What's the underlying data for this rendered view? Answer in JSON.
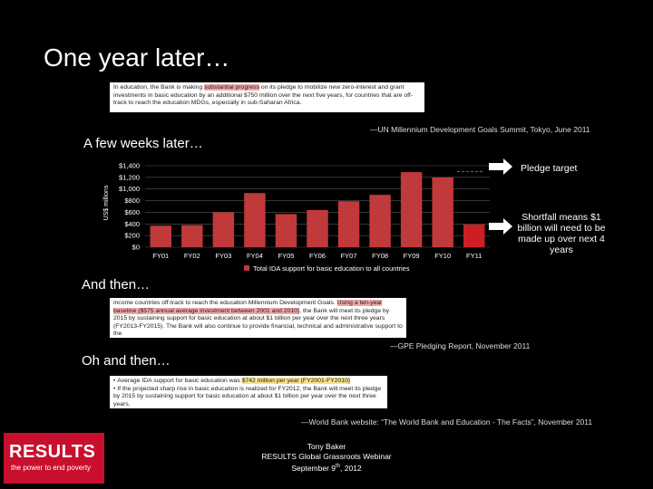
{
  "slide": {
    "title": "One year later…",
    "quote1": {
      "pre": "In education, the Bank is making ",
      "highlight": "substantial progress",
      "post": " on its pledge to mobilize new zero-interest and grant investments in basic education by an additional $750 million over the next five years, for countries that are off-track to reach the education MDGs, especially in sub-Saharan Africa.",
      "attribution": "—UN Millennium Development Goals Summit, Tokyo, June 2011"
    },
    "section2": "A few weeks later…",
    "section3": "And then…",
    "quote2": {
      "pre": "income countries off-track to reach the education Millennium Development Goals. ",
      "highlight": "Using a ten-year baseline ($575 annual average investment between 2001 and 2010)",
      "post": ", the Bank will meet its pledge by 2015 by sustaining support for basic education at about $1 billion per year over the next three years (FY2013-FY2015). The Bank will also continue to provide financial, technical and administrative support to the",
      "attribution": "—GPE Pledging Report, November 2011"
    },
    "section4": "Oh and then…",
    "quote3": {
      "line1_pre": "Average IDA support for basic education was ",
      "line1_highlight": "$742 million per year (FY2001-FY2010)",
      "line2": "If the projected sharp rise in basic education is realized for FY2012, the Bank will meet its pledge by 2015 by sustaining support for basic education at about $1 billion per year over the next three years.",
      "attribution": "—World Bank website: “The World Bank and Education - The Facts”, November 2011"
    },
    "annotations": {
      "pledge": "Pledge target",
      "shortfall": "Shortfall means $1 billion will need to be made up over next 4 years"
    },
    "footer": {
      "line1": "Tony Baker",
      "line2": "RESULTS Global Grassroots Webinar",
      "line3_pre": "September 9",
      "line3_sup": "th",
      "line3_post": ", 2012"
    },
    "logo": {
      "name": "RESULTS",
      "tagline": "the power to end poverty"
    }
  },
  "colors": {
    "bar": "#c0393b",
    "bar_last": "#cc1f24",
    "brand": "#c8102e",
    "grid": "#555555"
  },
  "chart_data": {
    "type": "bar",
    "title": "",
    "ylabel": "US$ millions",
    "xlabel": "",
    "categories": [
      "FY01",
      "FY02",
      "FY03",
      "FY04",
      "FY05",
      "FY06",
      "FY07",
      "FY08",
      "FY09",
      "FY10",
      "FY11"
    ],
    "series": [
      {
        "name": "Total IDA support for basic education to all countries",
        "values": [
          370,
          380,
          600,
          930,
          570,
          640,
          790,
          900,
          1290,
          1200,
          390
        ]
      }
    ],
    "y_ticks": [
      0,
      200,
      400,
      600,
      800,
      1000,
      1200,
      1400
    ],
    "y_tick_labels": [
      "$0",
      "$200",
      "$400",
      "$600",
      "$800",
      "$1,000",
      "$1,200",
      "$1,400"
    ],
    "ylim": [
      0,
      1400
    ],
    "pledge_target": 1300,
    "legend_position": "bottom"
  }
}
